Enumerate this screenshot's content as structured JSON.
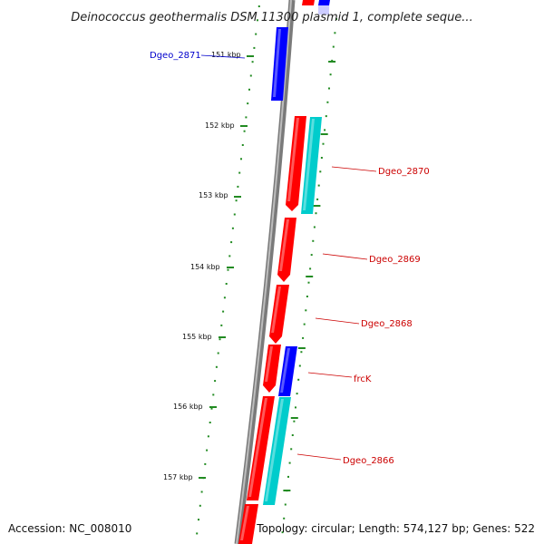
{
  "title": "Deinococcus geothermalis DSM 11300 plasmid 1, complete seque...",
  "colors": {
    "background": "#ffffff",
    "backbone": "#8c8c8c",
    "tick": "#228b22",
    "gene_red": "#ff0000",
    "gene_blue": "#0000ff",
    "gene_cyan": "#00cccc",
    "label_red": "#cc0000",
    "label_blue": "#0000cc"
  },
  "ticks": [
    {
      "label": "151 kbp"
    },
    {
      "label": "152 kbp"
    },
    {
      "label": "153 kbp"
    },
    {
      "label": "154 kbp"
    },
    {
      "label": "155 kbp"
    },
    {
      "label": "156 kbp"
    },
    {
      "label": "157 kbp"
    }
  ],
  "genes": [
    {
      "label": "Dgeo_2871",
      "color": "blue"
    },
    {
      "label": "Dgeo_2870",
      "color": "red"
    },
    {
      "label": "Dgeo_2869",
      "color": "red"
    },
    {
      "label": "Dgeo_2868",
      "color": "red"
    },
    {
      "label": "frcK",
      "color": "red"
    },
    {
      "label": "Dgeo_2866",
      "color": "red"
    }
  ],
  "footer": {
    "accession": "Accession: NC_008010",
    "topology": "Topology: circular; Length: 574,127 bp; Genes: 522"
  }
}
